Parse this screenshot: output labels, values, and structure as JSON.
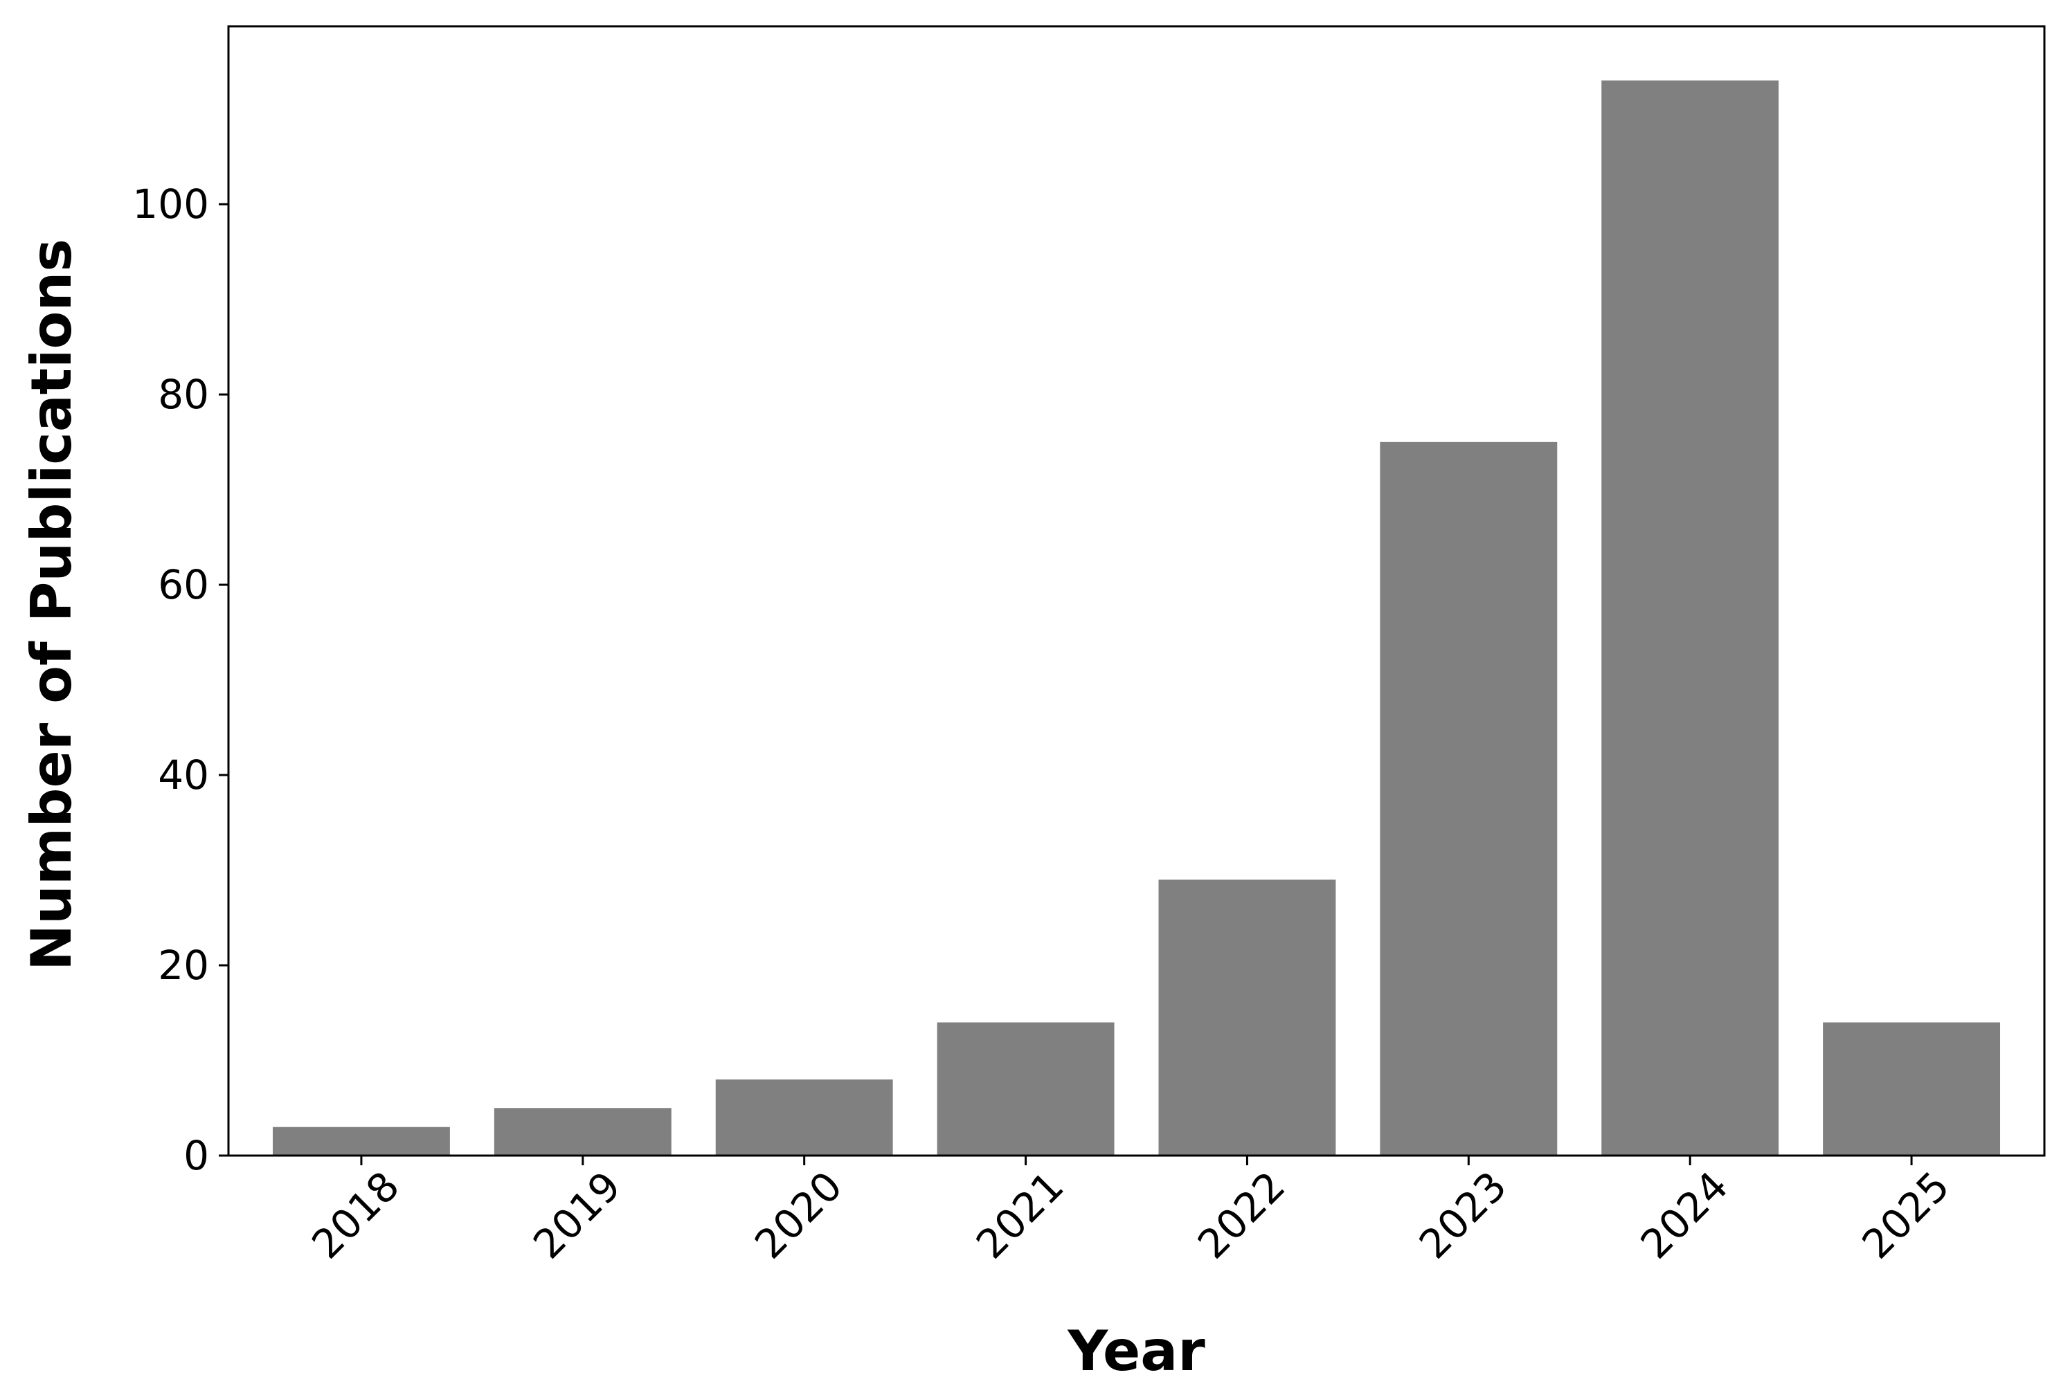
{
  "chart_data": {
    "type": "bar",
    "categories": [
      "2018",
      "2019",
      "2020",
      "2021",
      "2022",
      "2023",
      "2024",
      "2025"
    ],
    "values": [
      3,
      5,
      8,
      14,
      29,
      75,
      113,
      14
    ],
    "title": "",
    "xlabel": "Year",
    "ylabel": "Number of Publications",
    "ylim": [
      0,
      118.7
    ],
    "yticks": [
      0,
      20,
      40,
      60,
      80,
      100
    ],
    "xtick_rotation_deg": 45,
    "grid": false,
    "legend": "none",
    "colors": {
      "bar": "#808080",
      "frame": "#000000",
      "background": "#ffffff"
    }
  }
}
